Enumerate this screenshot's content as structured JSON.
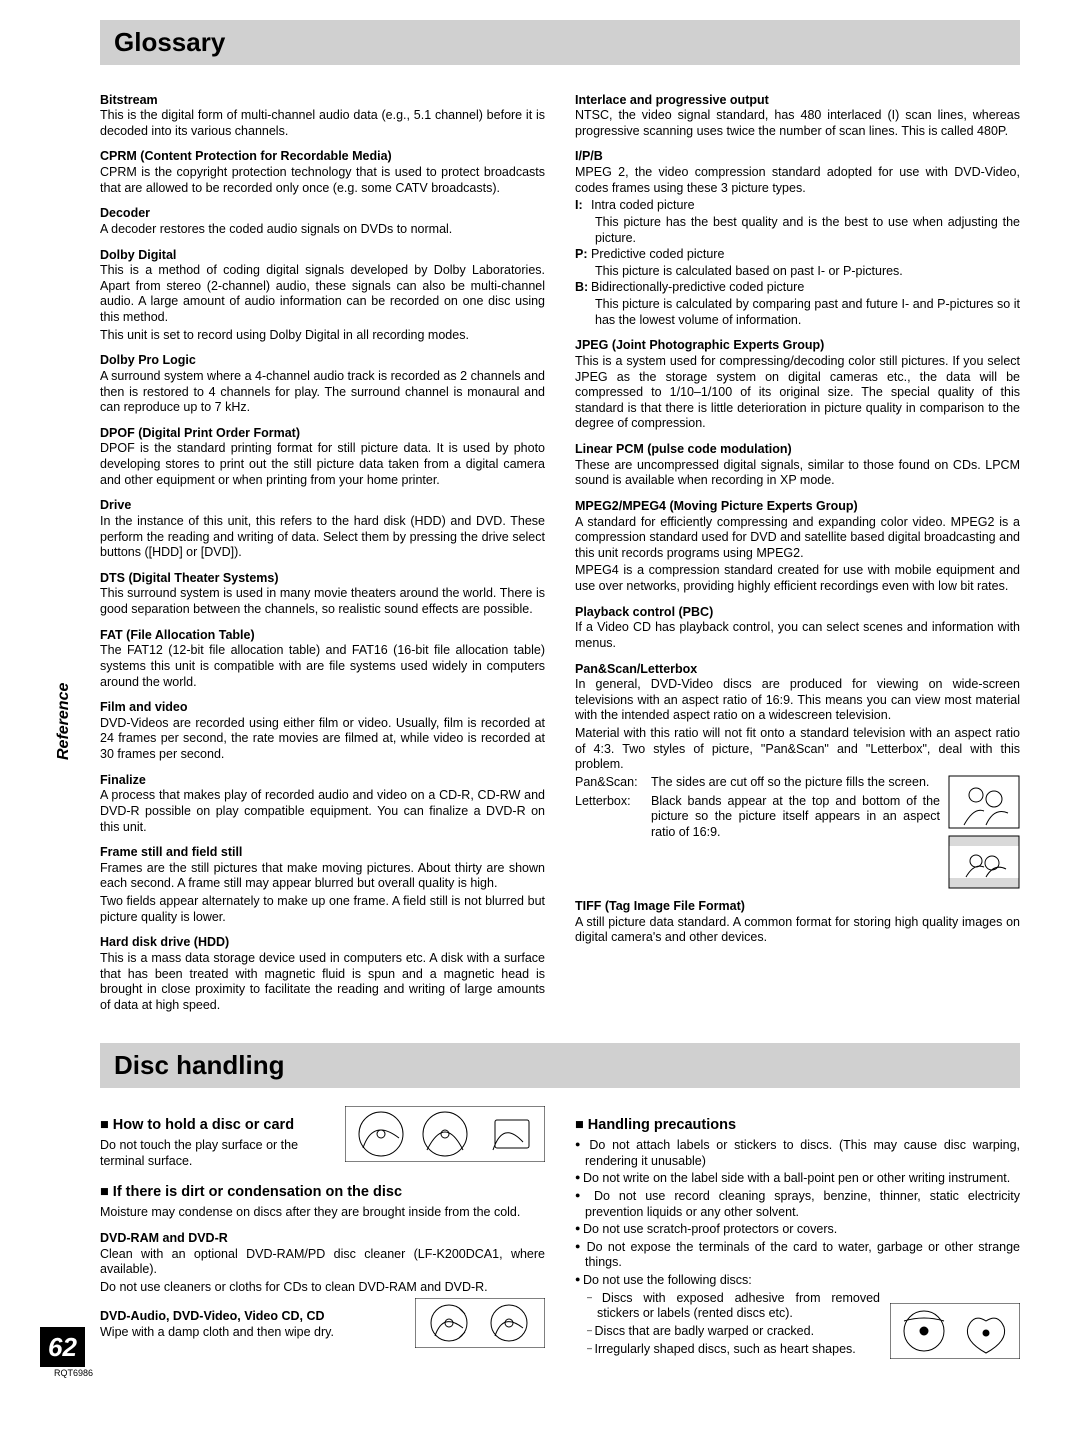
{
  "section1_title": "Glossary",
  "section2_title": "Disc handling",
  "tab_label": "Reference",
  "page_number": "62",
  "doc_code": "RQT6986",
  "col1": [
    {
      "t": "Bitstream",
      "d": [
        "This is the digital form of multi-channel audio data (e.g., 5.1 channel) before it is decoded into its various channels."
      ]
    },
    {
      "t": "CPRM (Content Protection for Recordable Media)",
      "d": [
        "CPRM is the copyright protection technology that is used to protect broadcasts that are allowed to be recorded only once (e.g. some CATV broadcasts)."
      ]
    },
    {
      "t": "Decoder",
      "d": [
        "A decoder restores the coded audio signals on DVDs to normal."
      ]
    },
    {
      "t": "Dolby Digital",
      "d": [
        "This is a method of coding digital signals developed by Dolby Laboratories. Apart from stereo (2-channel) audio, these signals can also be multi-channel audio. A large amount of audio information can be recorded on one disc using this method.",
        "This unit is set to record using Dolby Digital in all recording modes."
      ]
    },
    {
      "t": "Dolby Pro Logic",
      "d": [
        "A surround system where a 4-channel audio track is recorded as 2 channels and then is restored to 4 channels for play. The surround channel is monaural and can reproduce up to 7 kHz."
      ]
    },
    {
      "t": "DPOF (Digital Print Order Format)",
      "d": [
        "DPOF is the standard printing format for still picture data. It is used by photo developing stores to print out the still picture data taken from a digital camera and other equipment or when printing from your home printer."
      ]
    },
    {
      "t": "Drive",
      "d": [
        "In the instance of this unit, this refers to the hard disk (HDD) and DVD. These perform the reading and writing of data. Select them by pressing the drive select buttons ([HDD] or [DVD])."
      ]
    },
    {
      "t": "DTS (Digital Theater Systems)",
      "d": [
        "This surround system is used in many movie theaters around the world. There is good separation between the channels, so realistic sound effects are possible."
      ]
    },
    {
      "t": "FAT (File Allocation Table)",
      "d": [
        "The FAT12 (12-bit file allocation table) and FAT16 (16-bit file allocation table) systems this unit is compatible with are file systems used widely in computers around the world."
      ]
    },
    {
      "t": "Film and video",
      "d": [
        "DVD-Videos are recorded using either film or video. Usually, film is recorded at 24 frames per second, the rate movies are filmed at, while video is recorded at 30 frames per second."
      ]
    },
    {
      "t": "Finalize",
      "d": [
        "A process that makes play of recorded audio and video on a CD-R, CD-RW and DVD-R possible on play compatible equipment. You can finalize a DVD-R on this unit."
      ]
    },
    {
      "t": "Frame still and field still",
      "d": [
        "Frames are the still pictures that make moving pictures. About thirty are shown each second. A frame still may appear blurred but overall quality is high.",
        "Two fields appear alternately to make up one frame. A field still is not blurred but picture quality is lower."
      ]
    },
    {
      "t": "Hard disk drive (HDD)",
      "d": [
        "This is a mass data storage device used in computers etc. A disk with a surface that has been treated with magnetic fluid is spun and a magnetic head is brought in close proximity to facilitate the reading and writing of large amounts of data at high speed."
      ]
    }
  ],
  "col2": [
    {
      "t": "Interlace and progressive output",
      "d": [
        "NTSC, the video signal standard, has 480 interlaced (I) scan lines, whereas progressive scanning uses twice the number of scan lines. This is called 480P."
      ]
    },
    {
      "t": "I/P/B",
      "d": [
        "MPEG 2, the video compression standard adopted for use with DVD-Video, codes frames using these 3 picture types."
      ]
    },
    {
      "t": "JPEG (Joint Photographic Experts Group)",
      "d": [
        "This is a system used for compressing/decoding color still pictures. If you select JPEG as the storage system on digital cameras etc., the data will be compressed to 1/10–1/100 of its original size. The special quality of this standard is that there is little deterioration in picture quality in comparison to the degree of compression."
      ]
    },
    {
      "t": "Linear PCM (pulse code modulation)",
      "d": [
        "These are uncompressed digital signals, similar to those found on CDs. LPCM sound is available when recording in XP mode."
      ]
    },
    {
      "t": "MPEG2/MPEG4 (Moving Picture Experts Group)",
      "d": [
        "A standard for efficiently compressing and expanding color video. MPEG2 is a compression standard used for DVD and satellite based digital broadcasting and this unit records programs using MPEG2.",
        "MPEG4 is a compression standard created for use with mobile equipment and use over networks, providing highly efficient recordings even with low bit rates."
      ]
    },
    {
      "t": "Playback control (PBC)",
      "d": [
        "If a Video CD has playback control, you can select scenes and information with menus."
      ]
    },
    {
      "t": "Pan&Scan/Letterbox",
      "d": [
        "In general, DVD-Video discs are produced for viewing on wide-screen televisions with an aspect ratio of 16:9. This means you can view most material with the intended aspect ratio on a widescreen television.",
        "Material with this ratio will not fit onto a standard television with an aspect ratio of 4:3. Two styles of picture, \"Pan&Scan\" and \"Letterbox\", deal with this problem."
      ]
    },
    {
      "t": "TIFF (Tag Image File Format)",
      "d": [
        "A still picture data standard. A common format for storing high quality images on digital camera's and other devices."
      ]
    }
  ],
  "ipb": {
    "I": [
      "Intra coded picture",
      "This picture has the best quality and is the best to use when adjusting the picture."
    ],
    "P": [
      "Predictive coded picture",
      "This picture is calculated based on past I- or P-pictures."
    ],
    "B": [
      "Bidirectionally-predictive coded picture",
      "This picture is calculated by comparing past and future I- and P-pictures so it has the lowest volume of information."
    ]
  },
  "pan_scan": {
    "k": "Pan&Scan:",
    "t": "The sides are cut off so the picture fills the screen."
  },
  "letterbox": {
    "k": "Letterbox:",
    "t": "Black bands appear at the top and bottom of the picture so the picture itself appears in an aspect ratio of 16:9."
  },
  "disc_left": {
    "h1": "■ How to hold a disc or card",
    "h1_note": "Do not touch the play surface or the terminal surface.",
    "h2": "■ If there is dirt or condensation on the disc",
    "h2_note": "Moisture may condense on discs after they are brought inside from the cold.",
    "s1_t": "DVD-RAM and DVD-R",
    "s1_d": [
      "Clean with an optional DVD-RAM/PD disc cleaner (LF-K200DCA1, where available).",
      "Do not use cleaners or cloths for CDs to clean DVD-RAM and DVD-R."
    ],
    "s2_t": "DVD-Audio, DVD-Video, Video CD, CD",
    "s2_d": "Wipe with a damp cloth and then wipe dry."
  },
  "disc_right": {
    "h": "■ Handling precautions",
    "items": [
      "Do not attach labels or stickers to discs. (This may cause disc warping, rendering it unusable)",
      "Do not write on the label side with a ball-point pen or other writing instrument.",
      "Do not use record cleaning sprays, benzine, thinner, static electricity prevention liquids or any other solvent.",
      "Do not use scratch-proof protectors or covers.",
      "Do not expose the terminals of the card to water, garbage or other strange things.",
      "Do not use the following discs:"
    ],
    "sub": [
      "Discs with exposed adhesive from removed stickers or labels (rented discs etc).",
      "Discs that are badly warped or cracked.",
      "Irregularly shaped discs, such as heart shapes."
    ]
  }
}
